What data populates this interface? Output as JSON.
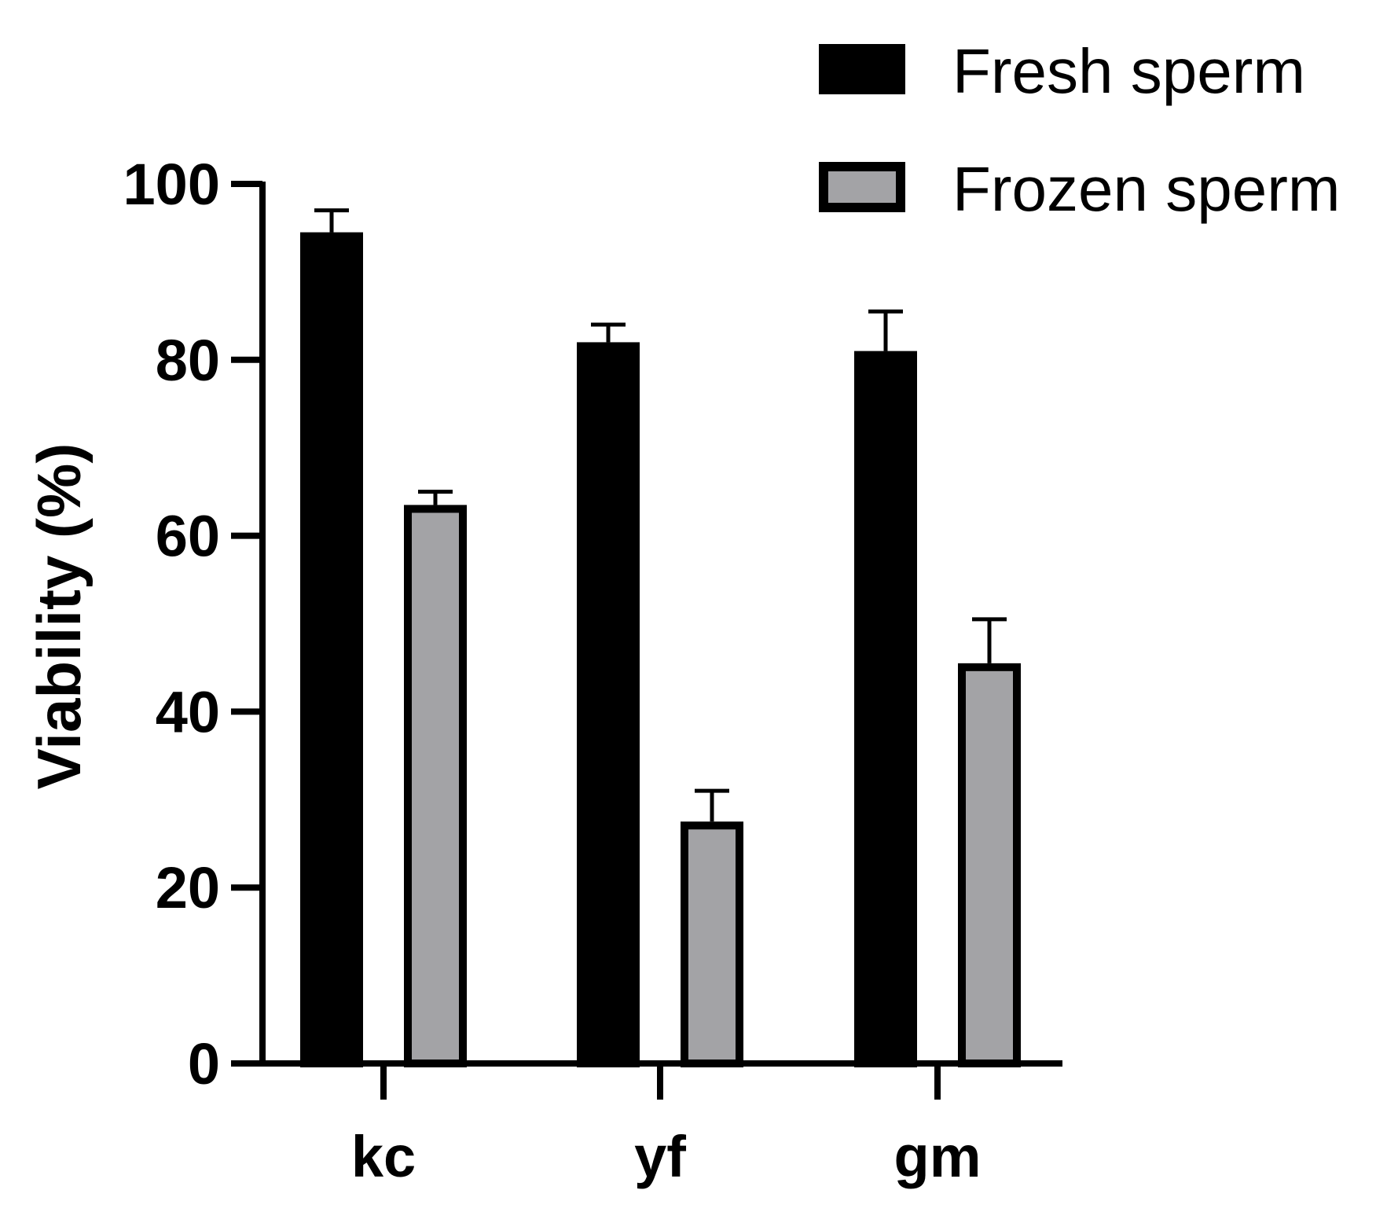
{
  "chart_data": {
    "type": "bar",
    "categories": [
      "kc",
      "yf",
      "gm"
    ],
    "series": [
      {
        "name": "Fresh sperm",
        "values": [
          94.5,
          82,
          81
        ],
        "errors": [
          2.5,
          2,
          4.5
        ],
        "fill": "#000000",
        "stroke": "#000000"
      },
      {
        "name": "Frozen sperm",
        "values": [
          63.5,
          27.5,
          45.5
        ],
        "errors": [
          1.5,
          3.5,
          5
        ],
        "fill": "#a3a3a6",
        "stroke": "#000000"
      }
    ],
    "ylabel": "Viability (%)",
    "ylim": [
      0,
      100
    ],
    "yticks": [
      "0",
      "20",
      "40",
      "60",
      "80",
      "100"
    ],
    "legend": "top-right",
    "grid": false
  }
}
